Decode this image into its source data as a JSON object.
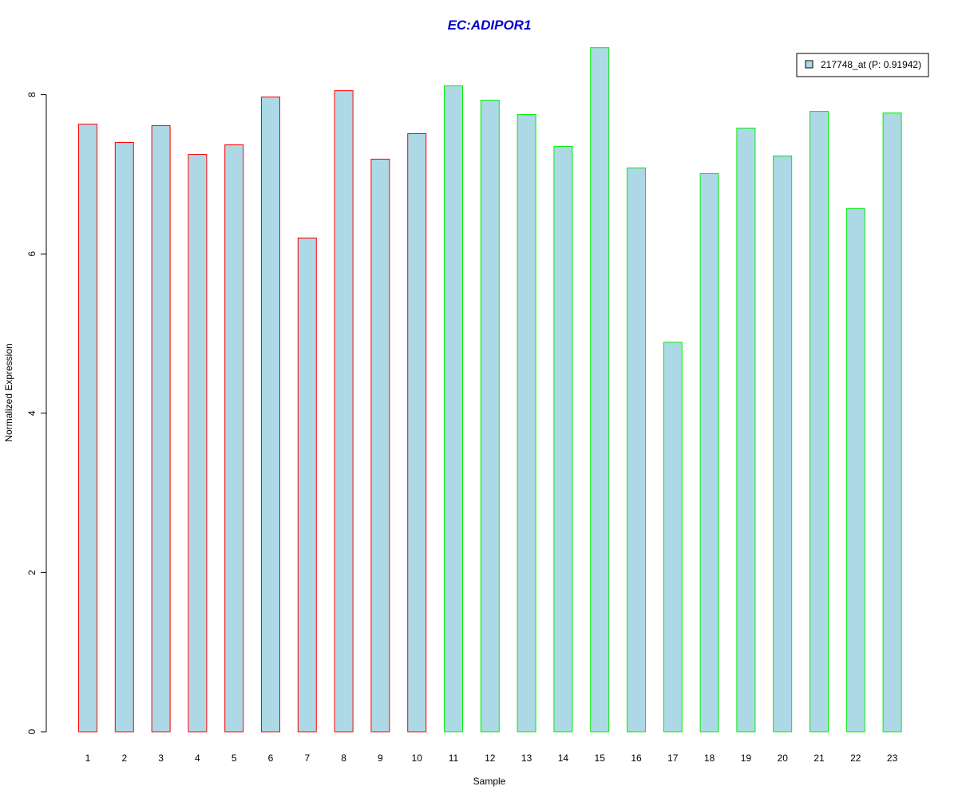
{
  "chart_data": {
    "type": "bar",
    "title": "EC:ADIPOR1",
    "title_color": "#0000cc",
    "xlabel": "Sample",
    "ylabel": "Normalized Expression",
    "ylim": [
      0,
      8.6
    ],
    "yticks": [
      0,
      2,
      4,
      6,
      8
    ],
    "grid": false,
    "legend_position": "top-right",
    "categories": [
      "1",
      "2",
      "3",
      "4",
      "5",
      "6",
      "7",
      "8",
      "9",
      "10",
      "11",
      "12",
      "13",
      "14",
      "15",
      "16",
      "17",
      "18",
      "19",
      "20",
      "21",
      "22",
      "23"
    ],
    "series": [
      {
        "name": "217748_at (P: 0.91942)",
        "fill": "#add8e6",
        "values": [
          7.63,
          7.4,
          7.61,
          7.25,
          7.37,
          7.97,
          6.2,
          8.05,
          7.19,
          7.51,
          8.11,
          7.93,
          7.75,
          7.35,
          8.59,
          7.08,
          4.89,
          7.01,
          7.58,
          7.23,
          7.79,
          6.57,
          7.77
        ]
      }
    ],
    "groups": [
      {
        "edge_color": "#ff0000",
        "categories": [
          "1",
          "2",
          "3",
          "4",
          "5",
          "6",
          "7",
          "8",
          "9",
          "10"
        ]
      },
      {
        "edge_color": "#00ee00",
        "categories": [
          "11",
          "12",
          "13",
          "14",
          "15",
          "16",
          "17",
          "18",
          "19",
          "20",
          "21",
          "22",
          "23"
        ]
      }
    ]
  }
}
